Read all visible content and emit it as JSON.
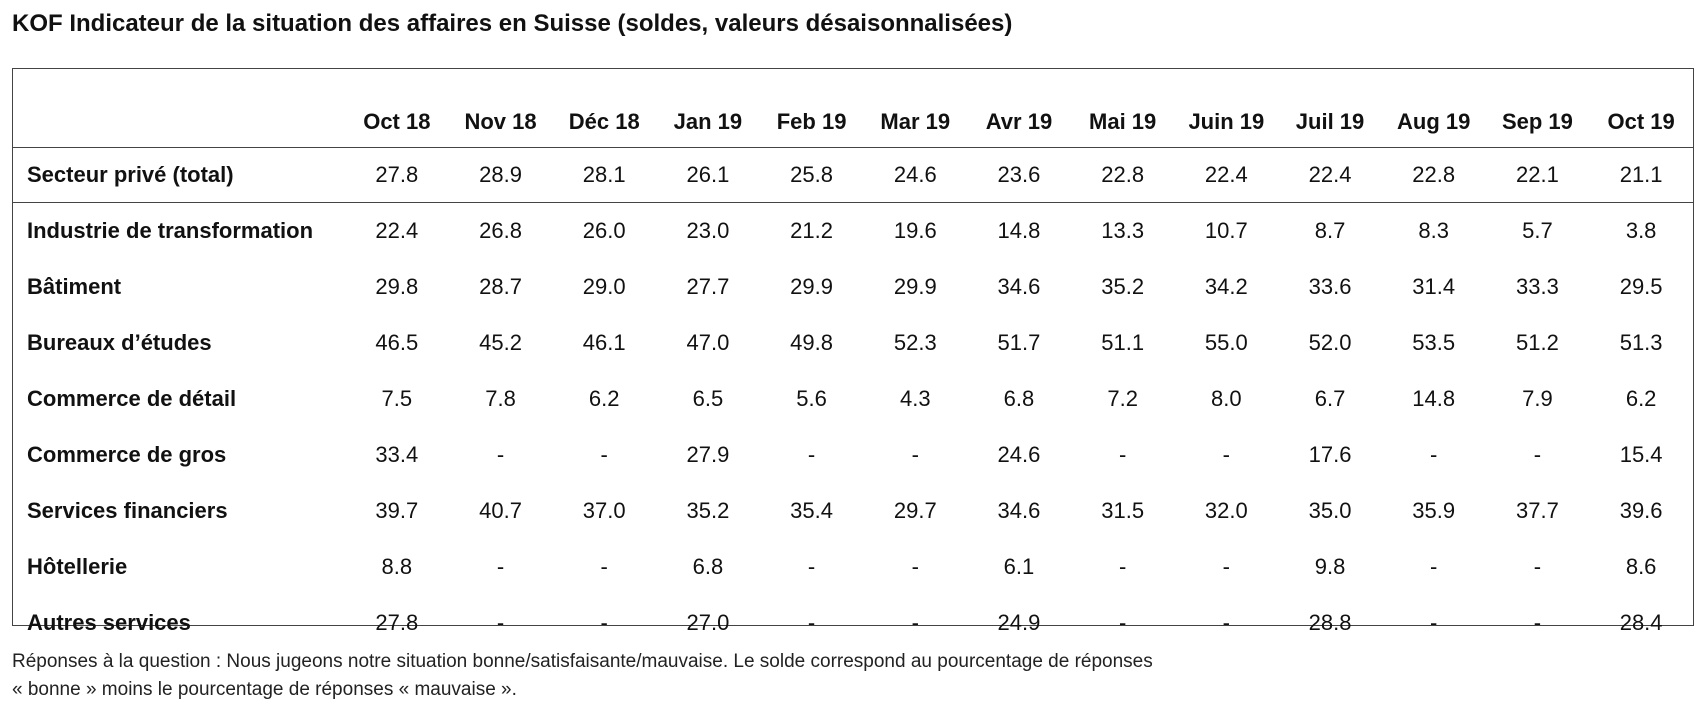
{
  "title": "KOF Indicateur de la situation des affaires en Suisse (soldes, valeurs désaisonnalisées)",
  "columns": [
    "Oct 18",
    "Nov 18",
    "Déc 18",
    "Jan 19",
    "Feb 19",
    "Mar 19",
    "Avr 19",
    "Mai 19",
    "Juin 19",
    "Juil 19",
    "Aug 19",
    "Sep 19",
    "Oct 19"
  ],
  "total_row": {
    "label": "Secteur privé (total)",
    "values": [
      "27.8",
      "28.9",
      "28.1",
      "26.1",
      "25.8",
      "24.6",
      "23.6",
      "22.8",
      "22.4",
      "22.4",
      "22.8",
      "22.1",
      "21.1"
    ]
  },
  "rows": [
    {
      "label": "Industrie de transformation",
      "values": [
        "22.4",
        "26.8",
        "26.0",
        "23.0",
        "21.2",
        "19.6",
        "14.8",
        "13.3",
        "10.7",
        "8.7",
        "8.3",
        "5.7",
        "3.8"
      ]
    },
    {
      "label": "Bâtiment",
      "values": [
        "29.8",
        "28.7",
        "29.0",
        "27.7",
        "29.9",
        "29.9",
        "34.6",
        "35.2",
        "34.2",
        "33.6",
        "31.4",
        "33.3",
        "29.5"
      ]
    },
    {
      "label": "Bureaux d’études",
      "values": [
        "46.5",
        "45.2",
        "46.1",
        "47.0",
        "49.8",
        "52.3",
        "51.7",
        "51.1",
        "55.0",
        "52.0",
        "53.5",
        "51.2",
        "51.3"
      ]
    },
    {
      "label": "Commerce de détail",
      "values": [
        "7.5",
        "7.8",
        "6.2",
        "6.5",
        "5.6",
        "4.3",
        "6.8",
        "7.2",
        "8.0",
        "6.7",
        "14.8",
        "7.9",
        "6.2"
      ]
    },
    {
      "label": "Commerce de gros",
      "values": [
        "33.4",
        "-",
        "-",
        "27.9",
        "-",
        "-",
        "24.6",
        "-",
        "-",
        "17.6",
        "-",
        "-",
        "15.4"
      ]
    },
    {
      "label": "Services financiers",
      "values": [
        "39.7",
        "40.7",
        "37.0",
        "35.2",
        "35.4",
        "29.7",
        "34.6",
        "31.5",
        "32.0",
        "35.0",
        "35.9",
        "37.7",
        "39.6"
      ]
    },
    {
      "label": "Hôtellerie",
      "values": [
        "8.8",
        "-",
        "-",
        "6.8",
        "-",
        "-",
        "6.1",
        "-",
        "-",
        "9.8",
        "-",
        "-",
        "8.6"
      ]
    },
    {
      "label": "Autres services",
      "values": [
        "27.8",
        "-",
        "-",
        "27.0",
        "-",
        "-",
        "24.9",
        "-",
        "-",
        "28.8",
        "-",
        "-",
        "28.4"
      ]
    }
  ],
  "footer": {
    "line1": "Réponses à la question : Nous jugeons notre situation bonne/satisfaisante/mauvaise. Le solde correspond au pourcentage de réponses",
    "line2": "« bonne » moins le pourcentage de réponses « mauvaise »."
  }
}
